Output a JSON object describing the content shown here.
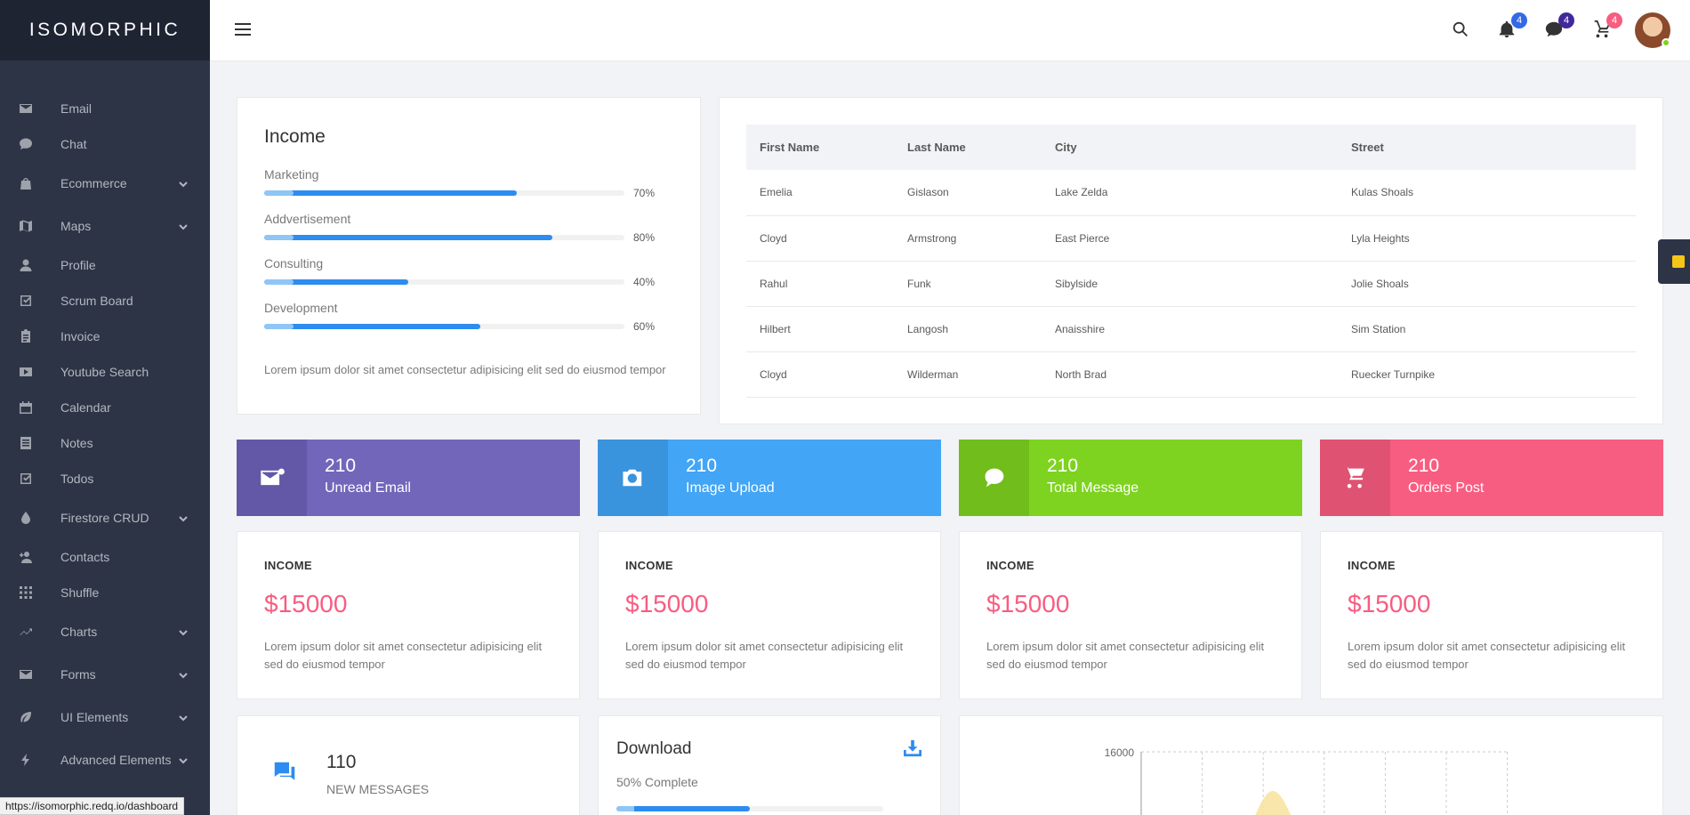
{
  "app": {
    "logo": "ISOMORPHIC"
  },
  "sidebar": {
    "items": [
      {
        "label": "Email",
        "icon": "mail-icon",
        "expand": false
      },
      {
        "label": "Chat",
        "icon": "chat-icon",
        "expand": false
      },
      {
        "label": "Ecommerce",
        "icon": "bag-icon",
        "expand": true
      },
      {
        "label": "Maps",
        "icon": "map-icon",
        "expand": true
      },
      {
        "label": "Profile",
        "icon": "person-icon",
        "expand": false
      },
      {
        "label": "Scrum Board",
        "icon": "checkbox-icon",
        "expand": false
      },
      {
        "label": "Invoice",
        "icon": "clipboard-icon",
        "expand": false
      },
      {
        "label": "Youtube Search",
        "icon": "play-icon",
        "expand": false
      },
      {
        "label": "Calendar",
        "icon": "calendar-icon",
        "expand": false
      },
      {
        "label": "Notes",
        "icon": "notes-icon",
        "expand": false
      },
      {
        "label": "Todos",
        "icon": "checkbox-icon",
        "expand": false
      },
      {
        "label": "Firestore CRUD",
        "icon": "drop-icon",
        "expand": true
      },
      {
        "label": "Contacts",
        "icon": "person-add-icon",
        "expand": false
      },
      {
        "label": "Shuffle",
        "icon": "grid-icon",
        "expand": false
      },
      {
        "label": "Charts",
        "icon": "trend-icon",
        "expand": true
      },
      {
        "label": "Forms",
        "icon": "mail-icon",
        "expand": true
      },
      {
        "label": "UI Elements",
        "icon": "leaf-icon",
        "expand": true
      },
      {
        "label": "Advanced Elements",
        "icon": "flash-icon",
        "expand": true
      }
    ]
  },
  "topbar": {
    "badges": {
      "notifications": "4",
      "messages": "4",
      "cart": "4"
    },
    "colors": {
      "notifications": "#3369e7",
      "messages": "#42299a",
      "cart": "#f75d81"
    }
  },
  "income": {
    "title": "Income",
    "bars": [
      {
        "label": "Marketing",
        "percent": 70,
        "text": "70%"
      },
      {
        "label": "Addvertisement",
        "percent": 80,
        "text": "80%"
      },
      {
        "label": "Consulting",
        "percent": 40,
        "text": "40%"
      },
      {
        "label": "Development",
        "percent": 60,
        "text": "60%"
      }
    ],
    "description": "Lorem ipsum dolor sit amet consectetur adipisicing elit sed do eiusmod tempor"
  },
  "table": {
    "headers": [
      "First Name",
      "Last Name",
      "City",
      "Street"
    ],
    "rows": [
      [
        "Emelia",
        "Gislason",
        "Lake Zelda",
        "Kulas Shoals"
      ],
      [
        "Cloyd",
        "Armstrong",
        "East Pierce",
        "Lyla Heights"
      ],
      [
        "Rahul",
        "Funk",
        "Sibylside",
        "Jolie Shoals"
      ],
      [
        "Hilbert",
        "Langosh",
        "Anaisshire",
        "Sim Station"
      ],
      [
        "Cloyd",
        "Wilderman",
        "North Brad",
        "Ruecker Turnpike"
      ]
    ]
  },
  "stats": [
    {
      "number": "210",
      "caption": "Unread Email",
      "icon": "mail-icon",
      "color": "#7266ba",
      "dark": "#6358a7"
    },
    {
      "number": "210",
      "caption": "Image Upload",
      "icon": "camera-icon",
      "color": "#42a5f6",
      "dark": "#3a93dd"
    },
    {
      "number": "210",
      "caption": "Total Message",
      "icon": "chat-icon",
      "color": "#7ed320",
      "dark": "#70bd1c"
    },
    {
      "number": "210",
      "caption": "Orders Post",
      "icon": "cart-icon",
      "color": "#f75d81",
      "dark": "#e05272"
    }
  ],
  "income_cards": [
    {
      "heading": "INCOME",
      "value": "$15000",
      "text": "Lorem ipsum dolor sit amet consectetur adipisicing elit sed do eiusmod tempor"
    },
    {
      "heading": "INCOME",
      "value": "$15000",
      "text": "Lorem ipsum dolor sit amet consectetur adipisicing elit sed do eiusmod tempor"
    },
    {
      "heading": "INCOME",
      "value": "$15000",
      "text": "Lorem ipsum dolor sit amet consectetur adipisicing elit sed do eiusmod tempor"
    },
    {
      "heading": "INCOME",
      "value": "$15000",
      "text": "Lorem ipsum dolor sit amet consectetur adipisicing elit sed do eiusmod tempor"
    }
  ],
  "messages": {
    "number": "110",
    "caption": "NEW MESSAGES"
  },
  "download": {
    "title": "Download",
    "subtitle": "50% Complete",
    "percent": 50
  },
  "chart_data": {
    "type": "area",
    "y_tick_labels": [
      "16000"
    ],
    "grid": true
  },
  "status_bar": {
    "url": "https://isomorphic.redq.io/dashboard"
  }
}
